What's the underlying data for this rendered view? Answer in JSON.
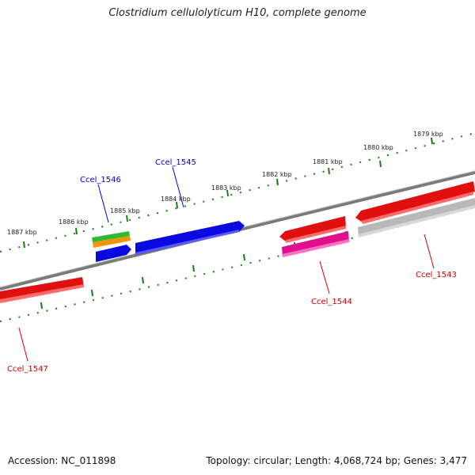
{
  "title": "Clostridium cellulolyticum H10, complete genome",
  "footer": {
    "accession": "Accession: NC_011898",
    "topology": "Topology: circular; Length: 4,068,724 bp; Genes: 3,477"
  },
  "colors": {
    "backbone": "#808080",
    "ticks": "#1a7a1a",
    "forward_label": "#0000cc",
    "reverse_label": "#cc0000"
  },
  "kbp_labels": [
    "1879 kbp",
    "1880 kbp",
    "1881 kbp",
    "1882 kbp",
    "1883 kbp",
    "1884 kbp",
    "1885 kbp",
    "1886 kbp",
    "1887 kbp"
  ],
  "genes": [
    {
      "id": "Ccel_1543",
      "label": "Ccel_1543",
      "color": "#e01010"
    },
    {
      "id": "Ccel_1544",
      "label": "Ccel_1544",
      "color": "#e01010"
    },
    {
      "id": "Ccel_1545",
      "label": "Ccel_1545",
      "color": "#0a0ae0"
    },
    {
      "id": "Ccel_1546",
      "label": "Ccel_1546",
      "color": "#0a0ae0"
    },
    {
      "id": "Ccel_1547",
      "label": "Ccel_1547",
      "color": "#e01010"
    }
  ]
}
